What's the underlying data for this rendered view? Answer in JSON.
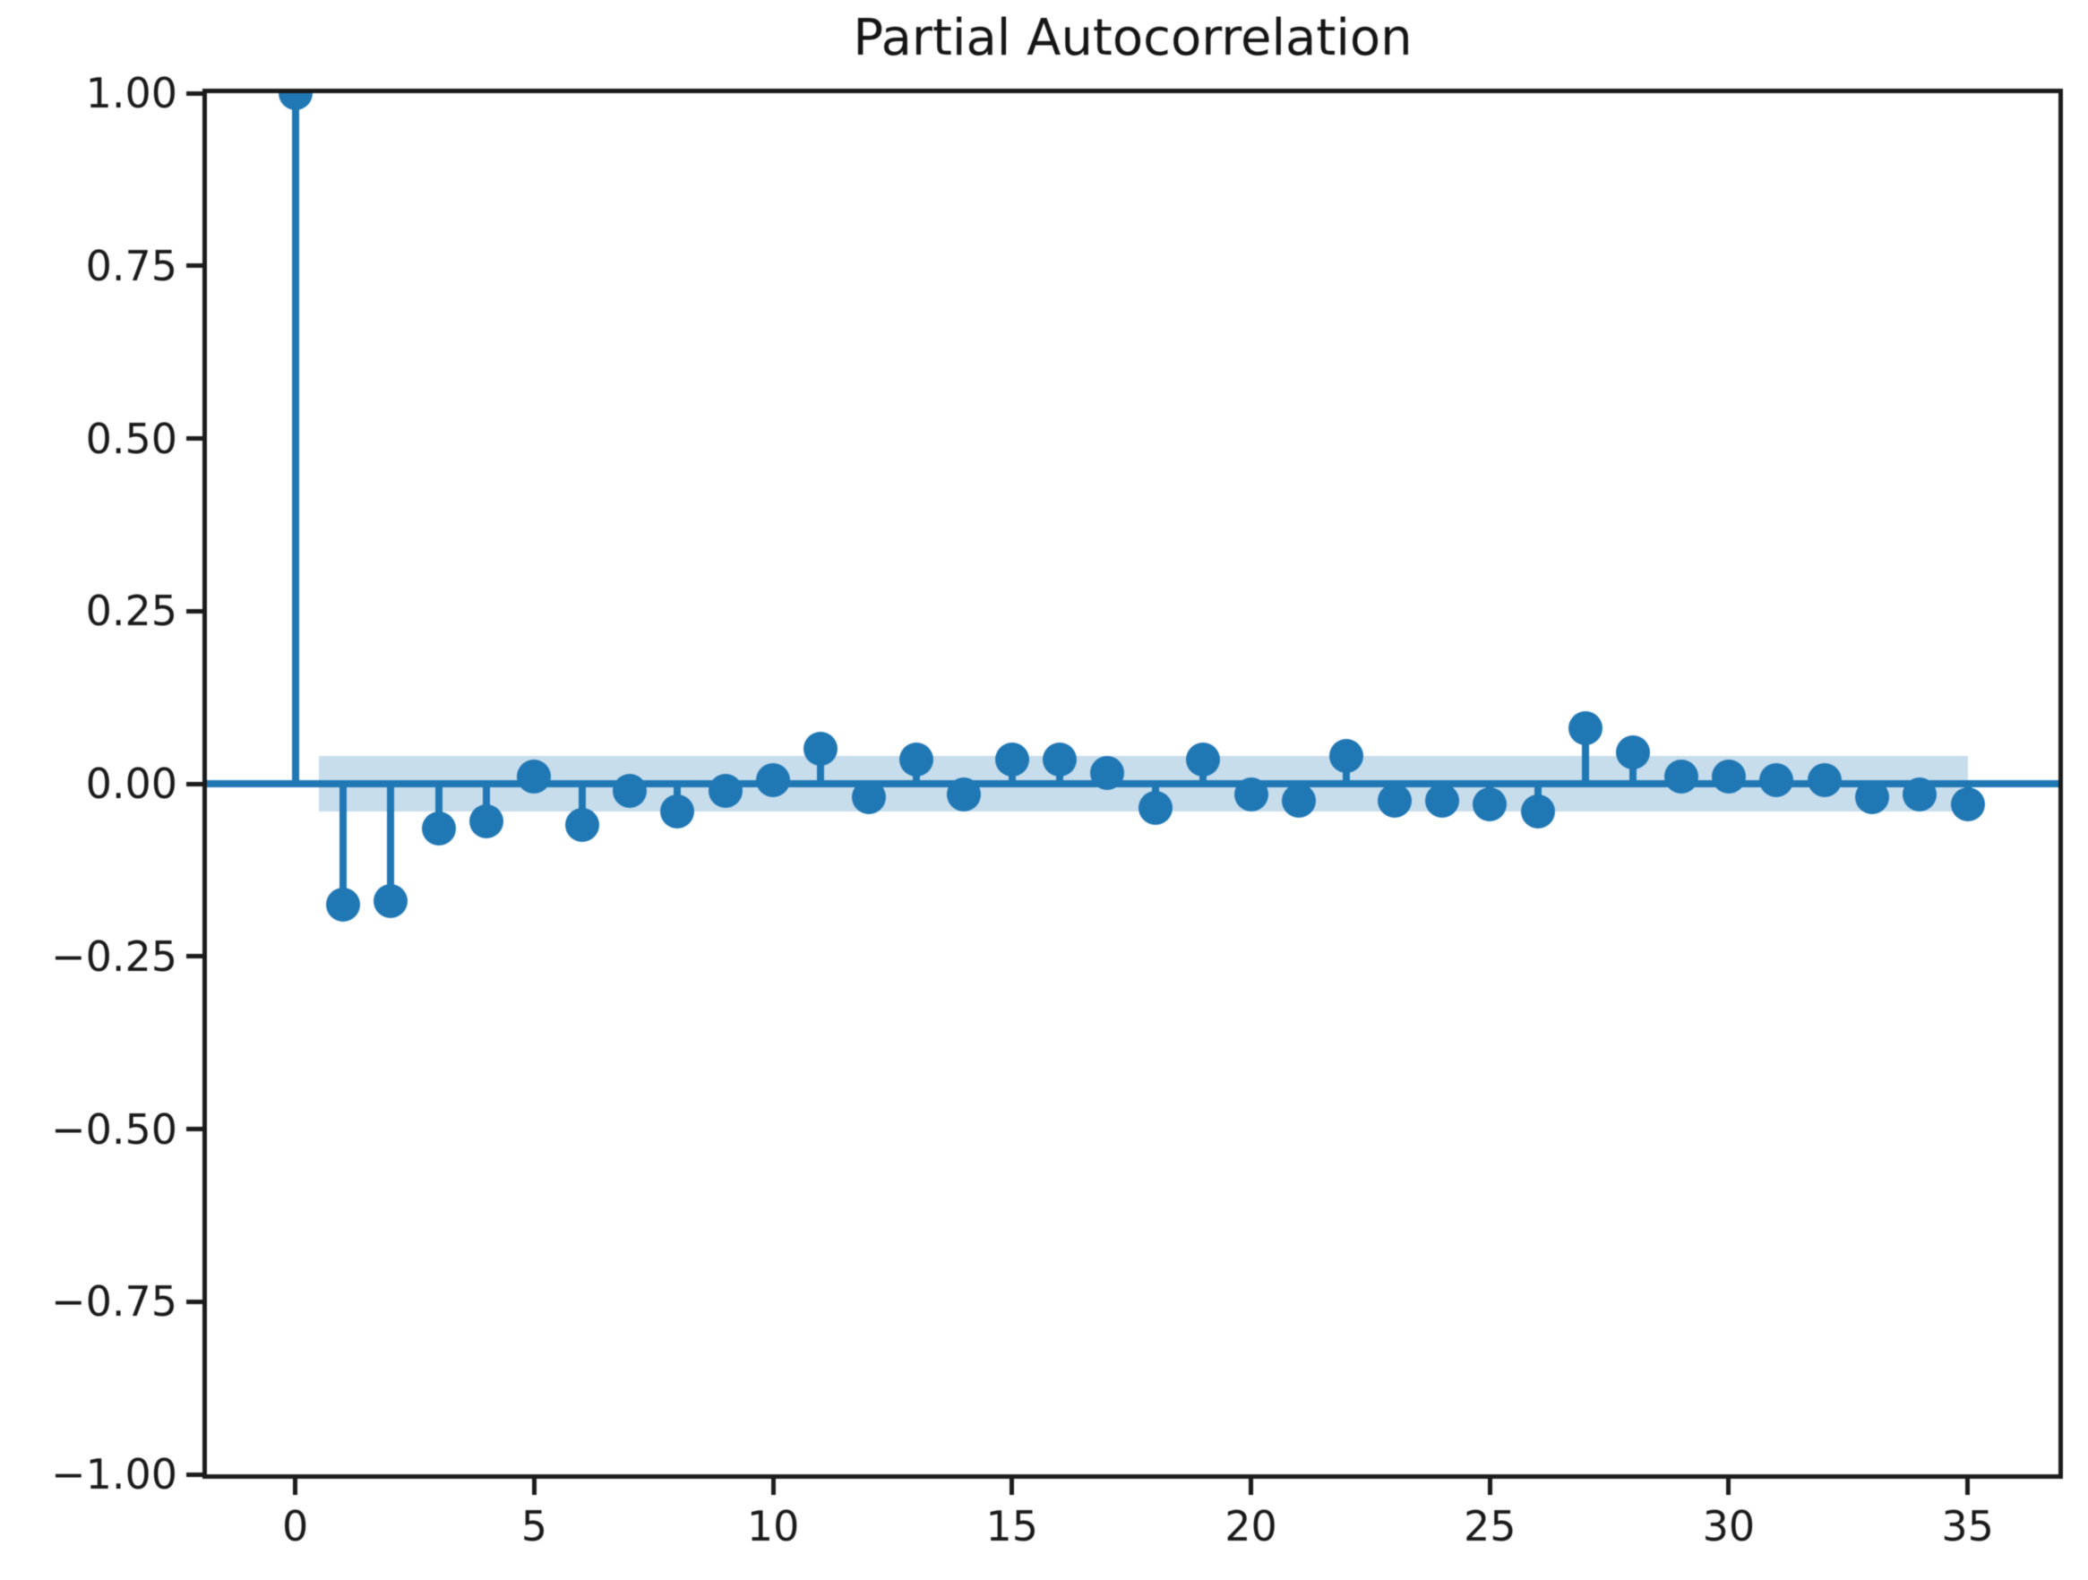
{
  "chart_data": {
    "type": "stem",
    "title": "Partial Autocorrelation",
    "xlabel": "",
    "ylabel": "",
    "x": [
      0,
      1,
      2,
      3,
      4,
      5,
      6,
      7,
      8,
      9,
      10,
      11,
      12,
      13,
      14,
      15,
      16,
      17,
      18,
      19,
      20,
      21,
      22,
      23,
      24,
      25,
      26,
      27,
      28,
      29,
      30,
      31,
      32,
      33,
      34,
      35
    ],
    "values": [
      1.0,
      -0.175,
      -0.17,
      -0.065,
      -0.055,
      0.01,
      -0.06,
      -0.01,
      -0.04,
      -0.01,
      0.005,
      0.05,
      -0.02,
      0.035,
      -0.015,
      0.035,
      0.035,
      0.015,
      -0.035,
      0.035,
      -0.015,
      -0.025,
      0.04,
      -0.025,
      -0.025,
      -0.03,
      -0.04,
      0.08,
      0.045,
      0.01,
      0.01,
      0.005,
      0.005,
      -0.02,
      -0.015,
      -0.03
    ],
    "confidence_band": {
      "lower": -0.04,
      "upper": 0.04,
      "x_start": 0.5,
      "x_end": 35.0
    },
    "xlim": [
      -1.85,
      36.9
    ],
    "ylim": [
      -1.0,
      1.0
    ],
    "xticks": {
      "values": [
        0,
        5,
        10,
        15,
        20,
        25,
        30,
        35
      ],
      "labels": [
        "0",
        "5",
        "10",
        "15",
        "20",
        "25",
        "30",
        "35"
      ]
    },
    "yticks": {
      "values": [
        1.0,
        0.75,
        0.5,
        0.25,
        0.0,
        -0.25,
        -0.5,
        -0.75,
        -1.0
      ],
      "labels": [
        "1.00",
        "0.75",
        "0.50",
        "0.25",
        "0.00",
        "−0.25",
        "−0.50",
        "−0.75",
        "−1.00"
      ]
    },
    "grid": false,
    "legend": null,
    "colors": {
      "stem": "#1f77b4",
      "marker": "#1f77b4",
      "zero_line": "#1f77b4",
      "band_fill": "rgba(31,119,180,0.25)",
      "axis": "#1b1b1b",
      "background": "#ffffff"
    }
  }
}
